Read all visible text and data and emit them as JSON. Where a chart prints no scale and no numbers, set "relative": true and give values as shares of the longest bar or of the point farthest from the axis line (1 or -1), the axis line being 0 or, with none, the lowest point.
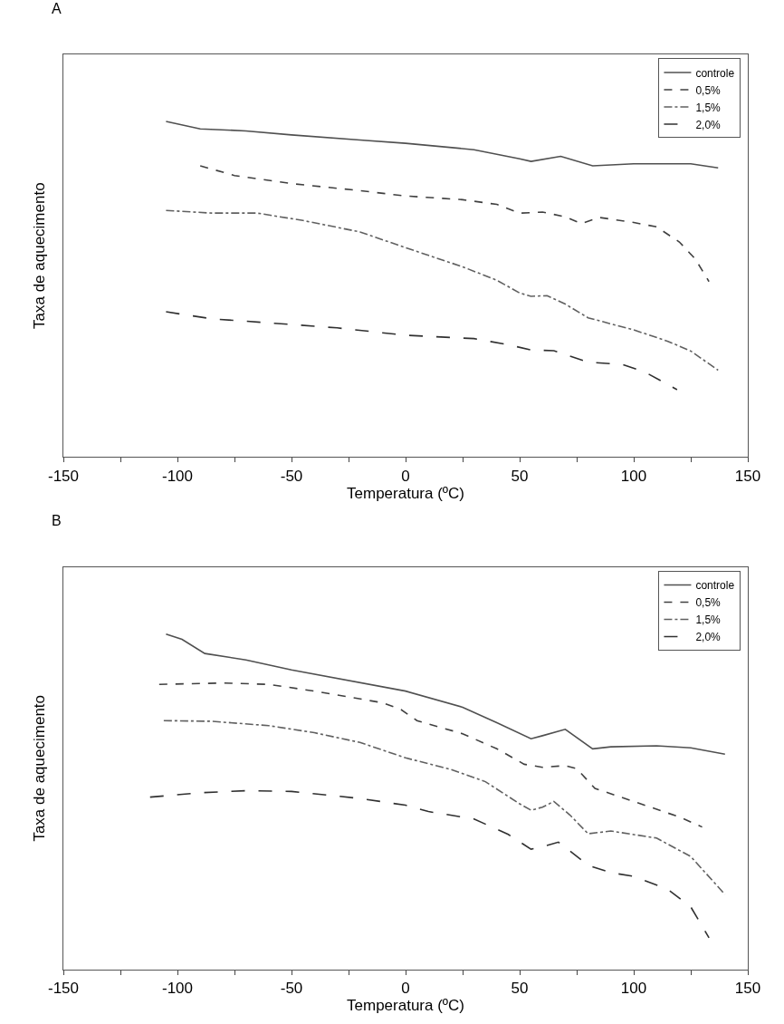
{
  "chart_data": [
    {
      "type": "line",
      "relative": true,
      "annotations": [
        "A"
      ],
      "xlabel": "Temperatura (ºC)",
      "ylabel": "Taxa de aquecimento",
      "xlim": [
        -150,
        150
      ],
      "xticks": [
        -150,
        {
          "value": -125,
          "label": null
        },
        -100,
        {
          "value": -75,
          "label": null
        },
        -50,
        {
          "value": -25,
          "label": null
        },
        0,
        {
          "value": 25,
          "label": null
        },
        50,
        {
          "value": 75,
          "label": null
        },
        100,
        {
          "value": 125,
          "label": null
        },
        150
      ],
      "tick_labels": "x",
      "legend": "top right",
      "marker": "none",
      "series": [
        {
          "name": "controle",
          "color": "#505050",
          "line_style": "solid",
          "x": [
            -105,
            -90,
            -70,
            -50,
            -20,
            0,
            30,
            50,
            55,
            68,
            82,
            100,
            125,
            137
          ],
          "values": [
            1.0,
            0.978,
            0.972,
            0.96,
            0.945,
            0.935,
            0.916,
            0.889,
            0.881,
            0.896,
            0.868,
            0.874,
            0.874,
            0.862
          ]
        },
        {
          "name": "0,5%",
          "color": "#404040",
          "line_style": "dashed",
          "x": [
            -90,
            -75,
            -50,
            -20,
            0,
            25,
            40,
            50,
            60,
            70,
            77,
            85,
            100,
            110,
            120,
            127,
            133
          ],
          "values": [
            0.868,
            0.839,
            0.815,
            0.794,
            0.778,
            0.767,
            0.753,
            0.727,
            0.73,
            0.716,
            0.696,
            0.714,
            0.699,
            0.686,
            0.641,
            0.59,
            0.523
          ]
        },
        {
          "name": "1,5%",
          "color": "#606060",
          "line_style": "dashdot",
          "x": [
            -105,
            -85,
            -65,
            -45,
            -20,
            0,
            25,
            40,
            50,
            55,
            62,
            70,
            80,
            100,
            115,
            125,
            137
          ],
          "values": [
            0.735,
            0.727,
            0.727,
            0.705,
            0.671,
            0.624,
            0.567,
            0.527,
            0.489,
            0.479,
            0.481,
            0.456,
            0.415,
            0.379,
            0.345,
            0.316,
            0.259
          ]
        },
        {
          "name": "2,0%",
          "color": "#303030",
          "line_style": "longdash",
          "x": [
            -105,
            -85,
            -60,
            -30,
            0,
            30,
            45,
            55,
            65,
            80,
            95,
            105,
            119
          ],
          "values": [
            0.433,
            0.412,
            0.4,
            0.385,
            0.363,
            0.353,
            0.335,
            0.319,
            0.317,
            0.283,
            0.276,
            0.253,
            0.201
          ]
        }
      ]
    },
    {
      "type": "line",
      "relative": true,
      "annotations": [
        "B"
      ],
      "xlabel": "Temperatura (ºC)",
      "ylabel": "Taxa de aquecimento",
      "xlim": [
        -150,
        150
      ],
      "xticks": [
        -150,
        {
          "value": -125,
          "label": null
        },
        -100,
        {
          "value": -75,
          "label": null
        },
        -50,
        {
          "value": -25,
          "label": null
        },
        0,
        {
          "value": 25,
          "label": null
        },
        50,
        {
          "value": 75,
          "label": null
        },
        100,
        {
          "value": 125,
          "label": null
        },
        150
      ],
      "tick_labels": "x",
      "legend": "top right",
      "marker": "none",
      "series": [
        {
          "name": "controle",
          "color": "#505050",
          "line_style": "solid",
          "x": [
            -105,
            -98,
            -88,
            -70,
            -50,
            0,
            25,
            40,
            55,
            60,
            70,
            82,
            90,
            110,
            125,
            140
          ],
          "values": [
            1.0,
            0.984,
            0.942,
            0.923,
            0.893,
            0.83,
            0.782,
            0.736,
            0.688,
            0.697,
            0.716,
            0.658,
            0.664,
            0.667,
            0.661,
            0.642
          ]
        },
        {
          "name": "0,5%",
          "color": "#404040",
          "line_style": "dashed",
          "x": [
            -108,
            -80,
            -60,
            -40,
            -10,
            -2,
            5,
            25,
            40,
            52,
            60,
            70,
            75,
            83,
            100,
            120,
            130
          ],
          "values": [
            0.85,
            0.854,
            0.85,
            0.83,
            0.795,
            0.775,
            0.742,
            0.703,
            0.658,
            0.612,
            0.603,
            0.608,
            0.599,
            0.54,
            0.501,
            0.455,
            0.425
          ]
        },
        {
          "name": "1,5%",
          "color": "#606060",
          "line_style": "dashdot",
          "x": [
            -106,
            -85,
            -60,
            -40,
            -20,
            0,
            20,
            35,
            50,
            55,
            60,
            65,
            72,
            80,
            90,
            110,
            125,
            140
          ],
          "values": [
            0.742,
            0.74,
            0.727,
            0.706,
            0.677,
            0.631,
            0.596,
            0.56,
            0.494,
            0.475,
            0.484,
            0.501,
            0.461,
            0.405,
            0.413,
            0.392,
            0.337,
            0.224
          ]
        },
        {
          "name": "2,0%",
          "color": "#303030",
          "line_style": "longdash",
          "x": [
            -112,
            -90,
            -70,
            -50,
            -20,
            0,
            10,
            30,
            45,
            55,
            60,
            67,
            80,
            90,
            100,
            115,
            125,
            133
          ],
          "values": [
            0.514,
            0.527,
            0.533,
            0.531,
            0.51,
            0.49,
            0.471,
            0.449,
            0.403,
            0.359,
            0.366,
            0.38,
            0.311,
            0.289,
            0.278,
            0.239,
            0.187,
            0.095
          ]
        }
      ]
    }
  ]
}
